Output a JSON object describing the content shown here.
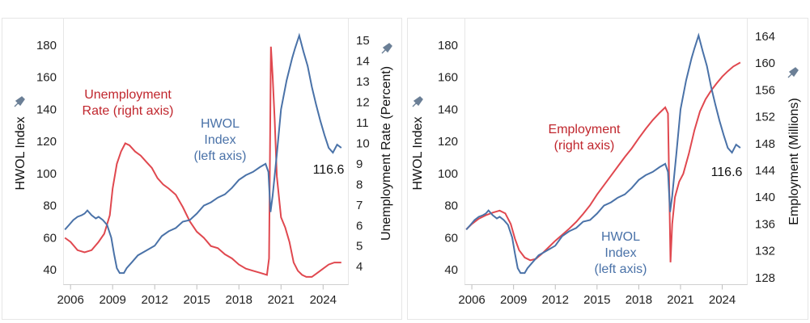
{
  "colors": {
    "hwol": "#4a72a8",
    "second": "#e0484f",
    "second_text": "#c0262d",
    "hwol_text": "#4a72a8",
    "pin": "#6b7f96"
  },
  "icons": {
    "axis_pin": "pin-icon"
  },
  "chart_data": [
    {
      "type": "line",
      "x_ticks": [
        "2006",
        "2009",
        "2012",
        "2015",
        "2018",
        "2021",
        "2024"
      ],
      "xlim": [
        2005.5,
        2025.8
      ],
      "left_axis": {
        "label": "HWOL Index",
        "ylim": [
          33,
          188
        ],
        "ticks": [
          40,
          60,
          80,
          100,
          120,
          140,
          160,
          180
        ]
      },
      "right_axis": {
        "label": "Unemployment Rate (Percent)",
        "ylim": [
          3.3,
          15.4
        ],
        "ticks": [
          4,
          5,
          6,
          7,
          8,
          9,
          10,
          11,
          12,
          13,
          14,
          15
        ]
      },
      "annotations": {
        "second_line1": "Unemployment",
        "second_line2": "Rate (right axis)",
        "hwol_line1": "HWOL",
        "hwol_line2": "Index",
        "hwol_line3": "(left axis)"
      },
      "end_label": "116.6",
      "series": [
        {
          "axis": "left",
          "points": [
            [
              2005.6,
              65
            ],
            [
              2005.9,
              68
            ],
            [
              2006.2,
              71
            ],
            [
              2006.5,
              73
            ],
            [
              2006.8,
              74
            ],
            [
              2007.0,
              75
            ],
            [
              2007.2,
              77
            ],
            [
              2007.5,
              74
            ],
            [
              2007.8,
              72
            ],
            [
              2008.0,
              73
            ],
            [
              2008.3,
              71
            ],
            [
              2008.6,
              68
            ],
            [
              2008.9,
              60
            ],
            [
              2009.1,
              50
            ],
            [
              2009.3,
              41
            ],
            [
              2009.5,
              38
            ],
            [
              2009.8,
              38
            ],
            [
              2010.0,
              41
            ],
            [
              2010.4,
              45
            ],
            [
              2010.8,
              49
            ],
            [
              2011.2,
              51
            ],
            [
              2011.6,
              53
            ],
            [
              2012.0,
              55
            ],
            [
              2012.5,
              61
            ],
            [
              2013.0,
              64
            ],
            [
              2013.5,
              66
            ],
            [
              2014.0,
              70
            ],
            [
              2014.5,
              71
            ],
            [
              2015.0,
              75
            ],
            [
              2015.5,
              80
            ],
            [
              2016.0,
              82
            ],
            [
              2016.5,
              85
            ],
            [
              2017.0,
              87
            ],
            [
              2017.5,
              91
            ],
            [
              2018.0,
              96
            ],
            [
              2018.5,
              99
            ],
            [
              2019.0,
              101
            ],
            [
              2019.5,
              104
            ],
            [
              2019.9,
              106
            ],
            [
              2020.1,
              101
            ],
            [
              2020.25,
              76
            ],
            [
              2020.4,
              86
            ],
            [
              2020.7,
              112
            ],
            [
              2021.0,
              140
            ],
            [
              2021.4,
              158
            ],
            [
              2021.8,
              172
            ],
            [
              2022.0,
              178
            ],
            [
              2022.3,
              186
            ],
            [
              2022.6,
              176
            ],
            [
              2022.9,
              167
            ],
            [
              2023.2,
              154
            ],
            [
              2023.5,
              143
            ],
            [
              2023.8,
              133
            ],
            [
              2024.1,
              124
            ],
            [
              2024.4,
              116
            ],
            [
              2024.7,
              113
            ],
            [
              2025.0,
              118
            ],
            [
              2025.3,
              116
            ]
          ]
        },
        {
          "axis": "right",
          "points": [
            [
              2005.6,
              5.4
            ],
            [
              2006.0,
              5.2
            ],
            [
              2006.5,
              4.8
            ],
            [
              2007.0,
              4.7
            ],
            [
              2007.5,
              4.8
            ],
            [
              2008.0,
              5.2
            ],
            [
              2008.4,
              5.6
            ],
            [
              2008.8,
              6.5
            ],
            [
              2009.0,
              7.8
            ],
            [
              2009.3,
              9.0
            ],
            [
              2009.6,
              9.6
            ],
            [
              2009.9,
              10.0
            ],
            [
              2010.2,
              9.9
            ],
            [
              2010.6,
              9.6
            ],
            [
              2011.0,
              9.4
            ],
            [
              2011.4,
              9.1
            ],
            [
              2011.8,
              8.8
            ],
            [
              2012.2,
              8.3
            ],
            [
              2012.6,
              8.0
            ],
            [
              2013.0,
              7.8
            ],
            [
              2013.5,
              7.5
            ],
            [
              2014.0,
              6.9
            ],
            [
              2014.5,
              6.2
            ],
            [
              2015.0,
              5.7
            ],
            [
              2015.5,
              5.4
            ],
            [
              2016.0,
              5.0
            ],
            [
              2016.5,
              4.9
            ],
            [
              2017.0,
              4.6
            ],
            [
              2017.5,
              4.4
            ],
            [
              2018.0,
              4.1
            ],
            [
              2018.5,
              3.9
            ],
            [
              2019.0,
              3.8
            ],
            [
              2019.5,
              3.7
            ],
            [
              2020.0,
              3.6
            ],
            [
              2020.15,
              4.4
            ],
            [
              2020.28,
              14.7
            ],
            [
              2020.4,
              13.3
            ],
            [
              2020.55,
              11.1
            ],
            [
              2020.7,
              8.4
            ],
            [
              2021.0,
              6.4
            ],
            [
              2021.3,
              5.9
            ],
            [
              2021.6,
              5.2
            ],
            [
              2021.9,
              4.2
            ],
            [
              2022.2,
              3.8
            ],
            [
              2022.5,
              3.6
            ],
            [
              2022.8,
              3.5
            ],
            [
              2023.2,
              3.5
            ],
            [
              2023.6,
              3.7
            ],
            [
              2024.0,
              3.9
            ],
            [
              2024.4,
              4.1
            ],
            [
              2024.8,
              4.2
            ],
            [
              2025.1,
              4.2
            ],
            [
              2025.3,
              4.2
            ]
          ]
        }
      ]
    },
    {
      "type": "line",
      "x_ticks": [
        "2006",
        "2009",
        "2012",
        "2015",
        "2018",
        "2021",
        "2024"
      ],
      "xlim": [
        2005.5,
        2025.8
      ],
      "left_axis": {
        "label": "HWOL Index",
        "ylim": [
          33,
          188
        ],
        "ticks": [
          40,
          60,
          80,
          100,
          120,
          140,
          160,
          180
        ]
      },
      "right_axis": {
        "label": "Employment (Millions)",
        "ylim": [
          127.5,
          164.6
        ],
        "ticks": [
          128,
          132,
          136,
          140,
          144,
          148,
          152,
          156,
          160,
          164
        ]
      },
      "annotations": {
        "second_line1": "Employment",
        "second_line2": "(right axis)",
        "hwol_line1": "HWOL",
        "hwol_line2": "Index",
        "hwol_line3": "(left axis)"
      },
      "end_label": "116.6",
      "series": [
        {
          "axis": "left",
          "points": [
            [
              2005.6,
              65
            ],
            [
              2005.9,
              68
            ],
            [
              2006.2,
              71
            ],
            [
              2006.5,
              73
            ],
            [
              2006.8,
              74
            ],
            [
              2007.0,
              75
            ],
            [
              2007.2,
              77
            ],
            [
              2007.5,
              74
            ],
            [
              2007.8,
              72
            ],
            [
              2008.0,
              73
            ],
            [
              2008.3,
              71
            ],
            [
              2008.6,
              68
            ],
            [
              2008.9,
              60
            ],
            [
              2009.1,
              50
            ],
            [
              2009.3,
              41
            ],
            [
              2009.5,
              38
            ],
            [
              2009.8,
              38
            ],
            [
              2010.0,
              41
            ],
            [
              2010.4,
              45
            ],
            [
              2010.8,
              49
            ],
            [
              2011.2,
              51
            ],
            [
              2011.6,
              53
            ],
            [
              2012.0,
              55
            ],
            [
              2012.5,
              61
            ],
            [
              2013.0,
              64
            ],
            [
              2013.5,
              66
            ],
            [
              2014.0,
              70
            ],
            [
              2014.5,
              71
            ],
            [
              2015.0,
              75
            ],
            [
              2015.5,
              80
            ],
            [
              2016.0,
              82
            ],
            [
              2016.5,
              85
            ],
            [
              2017.0,
              87
            ],
            [
              2017.5,
              91
            ],
            [
              2018.0,
              96
            ],
            [
              2018.5,
              99
            ],
            [
              2019.0,
              101
            ],
            [
              2019.5,
              104
            ],
            [
              2019.9,
              106
            ],
            [
              2020.1,
              101
            ],
            [
              2020.25,
              76
            ],
            [
              2020.4,
              86
            ],
            [
              2020.7,
              112
            ],
            [
              2021.0,
              140
            ],
            [
              2021.4,
              158
            ],
            [
              2021.8,
              172
            ],
            [
              2022.0,
              178
            ],
            [
              2022.3,
              186
            ],
            [
              2022.6,
              176
            ],
            [
              2022.9,
              167
            ],
            [
              2023.2,
              154
            ],
            [
              2023.5,
              143
            ],
            [
              2023.8,
              133
            ],
            [
              2024.1,
              124
            ],
            [
              2024.4,
              116
            ],
            [
              2024.7,
              113
            ],
            [
              2025.0,
              118
            ],
            [
              2025.3,
              116
            ]
          ]
        },
        {
          "axis": "right",
          "points": [
            [
              2005.6,
              135.2
            ],
            [
              2006.0,
              136.0
            ],
            [
              2006.5,
              136.8
            ],
            [
              2007.0,
              137.3
            ],
            [
              2007.5,
              137.7
            ],
            [
              2008.0,
              138.0
            ],
            [
              2008.4,
              137.6
            ],
            [
              2008.8,
              136.0
            ],
            [
              2009.1,
              133.8
            ],
            [
              2009.4,
              132.1
            ],
            [
              2009.8,
              131.0
            ],
            [
              2010.2,
              130.6
            ],
            [
              2010.6,
              130.8
            ],
            [
              2011.0,
              131.5
            ],
            [
              2011.5,
              132.5
            ],
            [
              2012.0,
              133.5
            ],
            [
              2012.5,
              134.4
            ],
            [
              2013.0,
              135.3
            ],
            [
              2013.5,
              136.3
            ],
            [
              2014.0,
              137.5
            ],
            [
              2014.5,
              138.8
            ],
            [
              2015.0,
              140.4
            ],
            [
              2015.5,
              141.8
            ],
            [
              2016.0,
              143.2
            ],
            [
              2016.5,
              144.6
            ],
            [
              2017.0,
              146.0
            ],
            [
              2017.5,
              147.3
            ],
            [
              2018.0,
              148.8
            ],
            [
              2018.5,
              150.2
            ],
            [
              2019.0,
              151.5
            ],
            [
              2019.5,
              152.6
            ],
            [
              2019.9,
              153.4
            ],
            [
              2020.1,
              152.5
            ],
            [
              2020.28,
              130.3
            ],
            [
              2020.4,
              136.0
            ],
            [
              2020.6,
              140.0
            ],
            [
              2020.9,
              142.3
            ],
            [
              2021.2,
              143.5
            ],
            [
              2021.6,
              146.5
            ],
            [
              2022.0,
              150.0
            ],
            [
              2022.4,
              152.8
            ],
            [
              2022.8,
              154.6
            ],
            [
              2023.2,
              155.9
            ],
            [
              2023.6,
              157.0
            ],
            [
              2024.0,
              158.0
            ],
            [
              2024.4,
              158.8
            ],
            [
              2024.8,
              159.5
            ],
            [
              2025.3,
              160.1
            ]
          ]
        }
      ]
    }
  ]
}
